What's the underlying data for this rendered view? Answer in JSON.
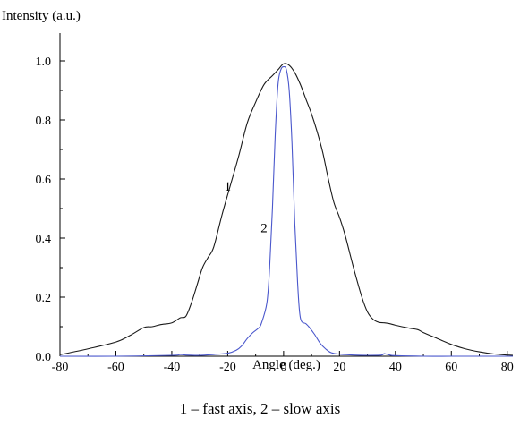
{
  "chart_data": {
    "type": "line",
    "ylabel": "Intensity (a.u.)",
    "xlabel": "Angle (deg.)",
    "xlim": [
      -80,
      82
    ],
    "ylim": [
      0,
      1.0
    ],
    "x_ticks": [
      -80,
      -60,
      -40,
      -20,
      0,
      20,
      40,
      60,
      80
    ],
    "x_tick_labels": [
      "-80",
      "-60",
      "-40",
      "-20",
      "0",
      "20",
      "40",
      "60",
      "80"
    ],
    "y_ticks": [
      0.0,
      0.2,
      0.4,
      0.6,
      0.8,
      1.0
    ],
    "y_tick_labels": [
      "0.0",
      "0.2",
      "0.4",
      "0.6",
      "0.8",
      "1.0"
    ],
    "grid": false,
    "series": [
      {
        "label": "1",
        "label_at": [
          -20,
          0.56
        ],
        "color": "#1a1a1a",
        "x": [
          -80,
          -70,
          -60,
          -55,
          -50,
          -47,
          -44,
          -40,
          -37,
          -35,
          -33,
          -31,
          -29,
          -27,
          -25,
          -22,
          -19,
          -16,
          -13,
          -10,
          -7,
          -4,
          -2,
          0,
          2,
          4,
          6,
          8,
          10,
          12,
          14,
          16,
          18,
          20,
          22,
          25,
          28,
          30,
          32,
          34,
          36,
          38,
          40,
          45,
          48,
          50,
          55,
          60,
          65,
          70,
          75,
          80,
          82
        ],
        "y": [
          0.005,
          0.025,
          0.048,
          0.07,
          0.097,
          0.1,
          0.107,
          0.113,
          0.13,
          0.135,
          0.18,
          0.24,
          0.3,
          0.335,
          0.37,
          0.48,
          0.58,
          0.68,
          0.79,
          0.86,
          0.92,
          0.95,
          0.97,
          0.99,
          0.985,
          0.96,
          0.92,
          0.87,
          0.82,
          0.76,
          0.69,
          0.6,
          0.52,
          0.47,
          0.41,
          0.3,
          0.2,
          0.15,
          0.125,
          0.115,
          0.113,
          0.11,
          0.105,
          0.095,
          0.09,
          0.08,
          0.06,
          0.04,
          0.025,
          0.015,
          0.008,
          0.004,
          0.003
        ]
      },
      {
        "label": "2",
        "label_at": [
          -7,
          0.42
        ],
        "color": "#4a57cc",
        "x": [
          -80,
          -60,
          -40,
          -37,
          -35,
          -30,
          -25,
          -20,
          -17,
          -15,
          -13,
          -11,
          -9,
          -8,
          -6,
          -5,
          -4,
          -3,
          -2,
          -1,
          0,
          1,
          2,
          3,
          4,
          5,
          6,
          8,
          9,
          11,
          13,
          15,
          17,
          20,
          25,
          30,
          35,
          36,
          38,
          40,
          50,
          60,
          70,
          82
        ],
        "y": [
          0.0,
          0.0,
          0.003,
          0.006,
          0.004,
          0.003,
          0.006,
          0.01,
          0.02,
          0.035,
          0.06,
          0.08,
          0.095,
          0.11,
          0.18,
          0.3,
          0.5,
          0.75,
          0.92,
          0.97,
          0.98,
          0.97,
          0.9,
          0.72,
          0.45,
          0.25,
          0.13,
          0.11,
          0.1,
          0.075,
          0.045,
          0.025,
          0.012,
          0.007,
          0.004,
          0.003,
          0.004,
          0.009,
          0.004,
          0.002,
          0.0,
          0.0,
          0.0,
          0.0
        ]
      }
    ]
  },
  "caption": "1 – fast axis, 2 – slow axis"
}
